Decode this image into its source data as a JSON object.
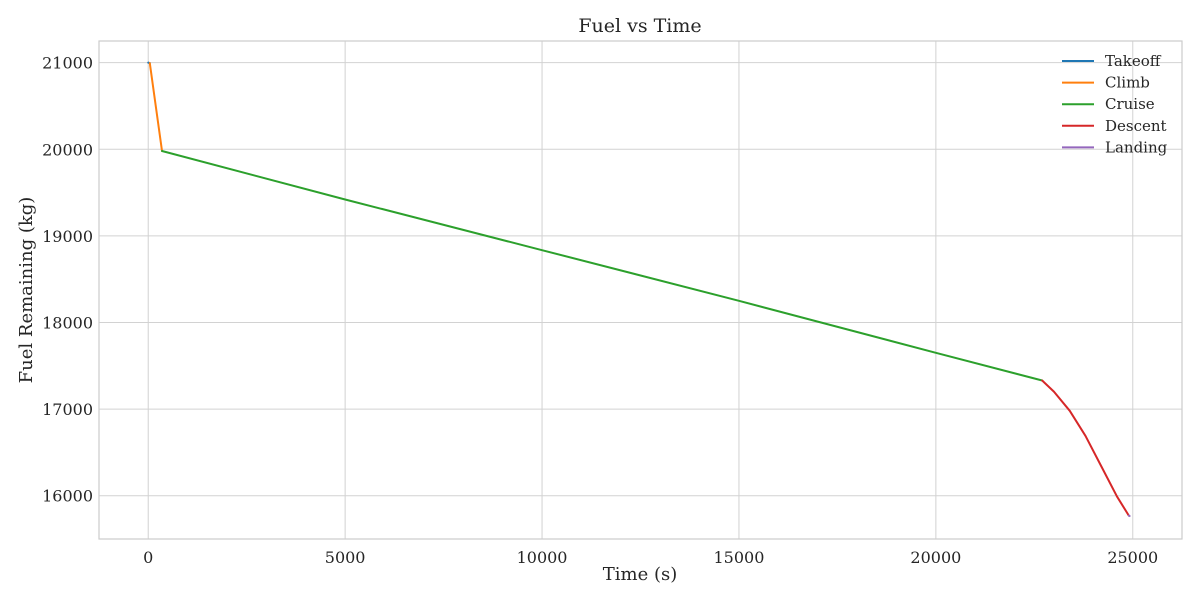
{
  "chart_data": {
    "type": "line",
    "title": "Fuel vs Time",
    "xlabel": "Time (s)",
    "ylabel": "Fuel Remaining (kg)",
    "xlim": [
      -1250,
      26250
    ],
    "ylim": [
      15500,
      21250
    ],
    "xticks": [
      0,
      5000,
      10000,
      15000,
      20000,
      25000
    ],
    "yticks": [
      16000,
      17000,
      18000,
      19000,
      20000,
      21000
    ],
    "grid": true,
    "legend_position": "top-right",
    "series": [
      {
        "name": "Takeoff",
        "color": "#1f77b4",
        "x": [
          0,
          40
        ],
        "y": [
          21000,
          20995
        ]
      },
      {
        "name": "Climb",
        "color": "#ff7f0e",
        "x": [
          40,
          350
        ],
        "y": [
          20995,
          19980
        ]
      },
      {
        "name": "Cruise",
        "color": "#2ca02c",
        "x": [
          350,
          5000,
          10000,
          15000,
          20000,
          22700
        ],
        "y": [
          19980,
          19420,
          18835,
          18250,
          17650,
          17330
        ]
      },
      {
        "name": "Descent",
        "color": "#d62728",
        "x": [
          22700,
          23000,
          23400,
          23800,
          24200,
          24600,
          24900
        ],
        "y": [
          17330,
          17200,
          16980,
          16690,
          16340,
          15990,
          15770
        ]
      },
      {
        "name": "Landing",
        "color": "#9467bd",
        "x": [
          24900,
          24920
        ],
        "y": [
          15770,
          15765
        ]
      }
    ]
  }
}
